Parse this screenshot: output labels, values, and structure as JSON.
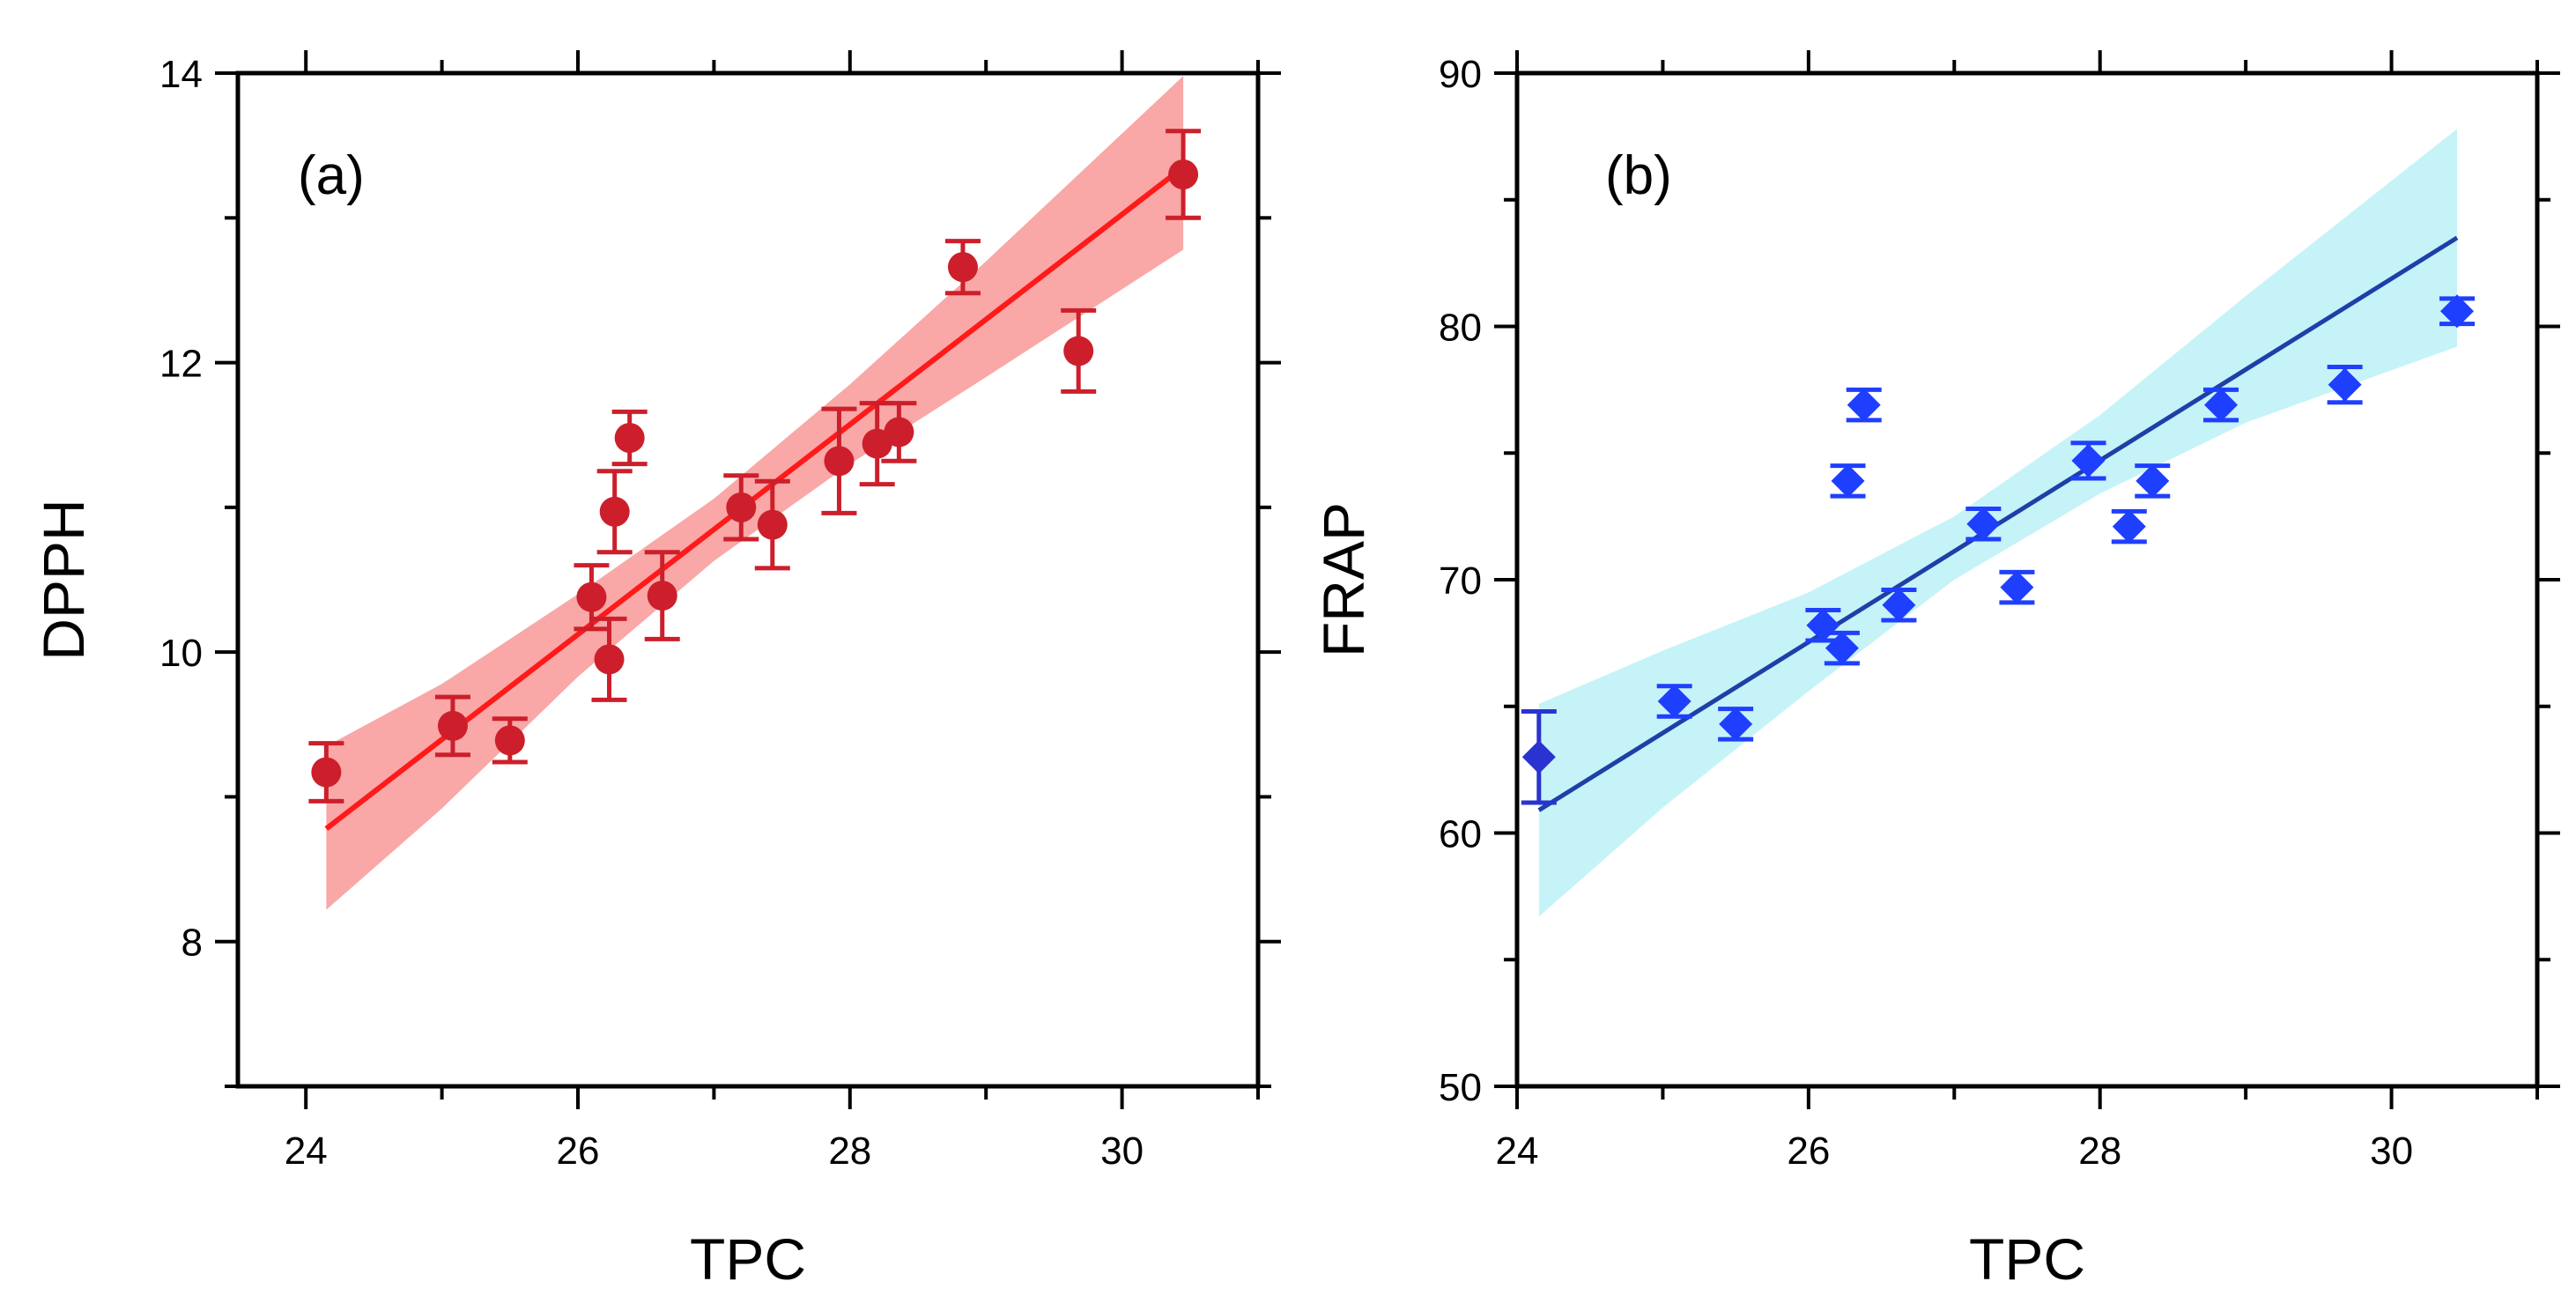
{
  "chart_data": [
    {
      "panel_label": "(a)",
      "type": "scatter",
      "xlabel": "TPC",
      "ylabel": "DPPH",
      "xlim": [
        23.5,
        31
      ],
      "ylim": [
        7,
        14
      ],
      "xticks": [
        24,
        26,
        28,
        30
      ],
      "yticks": [
        8,
        10,
        12,
        14
      ],
      "marker": "circle",
      "color_points": "#cc1f2b",
      "color_fit": "#ff1a1a",
      "color_band": "#f9a7a7",
      "points": [
        {
          "x": 24.15,
          "y": 9.17,
          "err": 0.2
        },
        {
          "x": 25.08,
          "y": 9.49,
          "err": 0.2
        },
        {
          "x": 25.5,
          "y": 9.39,
          "err": 0.15
        },
        {
          "x": 26.1,
          "y": 10.38,
          "err": 0.22
        },
        {
          "x": 26.23,
          "y": 9.95,
          "err": 0.28
        },
        {
          "x": 26.27,
          "y": 10.97,
          "err": 0.28
        },
        {
          "x": 26.38,
          "y": 11.48,
          "err": 0.18
        },
        {
          "x": 26.62,
          "y": 10.39,
          "err": 0.3
        },
        {
          "x": 27.2,
          "y": 11.0,
          "err": 0.22
        },
        {
          "x": 27.43,
          "y": 10.88,
          "err": 0.3
        },
        {
          "x": 27.92,
          "y": 11.32,
          "err": 0.36
        },
        {
          "x": 28.2,
          "y": 11.44,
          "err": 0.28
        },
        {
          "x": 28.36,
          "y": 11.52,
          "err": 0.2
        },
        {
          "x": 28.83,
          "y": 12.66,
          "err": 0.18
        },
        {
          "x": 29.68,
          "y": 12.08,
          "err": 0.28
        },
        {
          "x": 30.45,
          "y": 13.3,
          "err": 0.3
        }
      ],
      "fit": {
        "x": [
          24.15,
          30.45
        ],
        "y": [
          8.78,
          13.35
        ]
      },
      "band": {
        "x": [
          24.15,
          25.0,
          26.0,
          27.0,
          28.0,
          29.0,
          30.45
        ],
        "lower": [
          8.22,
          8.92,
          9.83,
          10.63,
          11.3,
          11.9,
          12.78
        ],
        "upper": [
          9.35,
          9.78,
          10.4,
          11.06,
          11.85,
          12.7,
          13.98
        ]
      }
    },
    {
      "panel_label": "(b)",
      "type": "scatter",
      "xlabel": "TPC",
      "ylabel": "FRAP",
      "xlim": [
        24,
        31
      ],
      "ylim": [
        50,
        90
      ],
      "xticks": [
        24,
        26,
        28,
        30
      ],
      "yticks": [
        50,
        60,
        70,
        80,
        90
      ],
      "marker": "diamond",
      "color_points": "#1f3fff",
      "color_fit": "#1f3fa8",
      "color_band": "#c6f3f8",
      "points": [
        {
          "x": 24.15,
          "y": 63.0,
          "err": 1.8,
          "color": "#2a33d0"
        },
        {
          "x": 25.08,
          "y": 65.2,
          "err": 0.6
        },
        {
          "x": 25.5,
          "y": 64.3,
          "err": 0.6
        },
        {
          "x": 26.1,
          "y": 68.2,
          "err": 0.6
        },
        {
          "x": 26.23,
          "y": 67.3,
          "err": 0.6
        },
        {
          "x": 26.27,
          "y": 73.9,
          "err": 0.6
        },
        {
          "x": 26.38,
          "y": 76.9,
          "err": 0.6
        },
        {
          "x": 26.62,
          "y": 69.0,
          "err": 0.6
        },
        {
          "x": 27.2,
          "y": 72.2,
          "err": 0.6
        },
        {
          "x": 27.43,
          "y": 69.7,
          "err": 0.6
        },
        {
          "x": 27.92,
          "y": 74.7,
          "err": 0.7
        },
        {
          "x": 28.2,
          "y": 72.1,
          "err": 0.6
        },
        {
          "x": 28.36,
          "y": 73.9,
          "err": 0.6
        },
        {
          "x": 28.83,
          "y": 76.9,
          "err": 0.6
        },
        {
          "x": 29.68,
          "y": 77.7,
          "err": 0.7
        },
        {
          "x": 30.45,
          "y": 80.6,
          "err": 0.5
        }
      ],
      "fit": {
        "x": [
          24.15,
          30.45
        ],
        "y": [
          60.9,
          83.5
        ]
      },
      "band": {
        "x": [
          24.15,
          25.0,
          26.0,
          27.0,
          28.0,
          29.0,
          30.45
        ],
        "lower": [
          56.7,
          61.0,
          65.6,
          70.0,
          73.4,
          76.2,
          79.2
        ],
        "upper": [
          65.1,
          67.2,
          69.5,
          72.5,
          76.5,
          81.2,
          87.8
        ]
      }
    }
  ]
}
